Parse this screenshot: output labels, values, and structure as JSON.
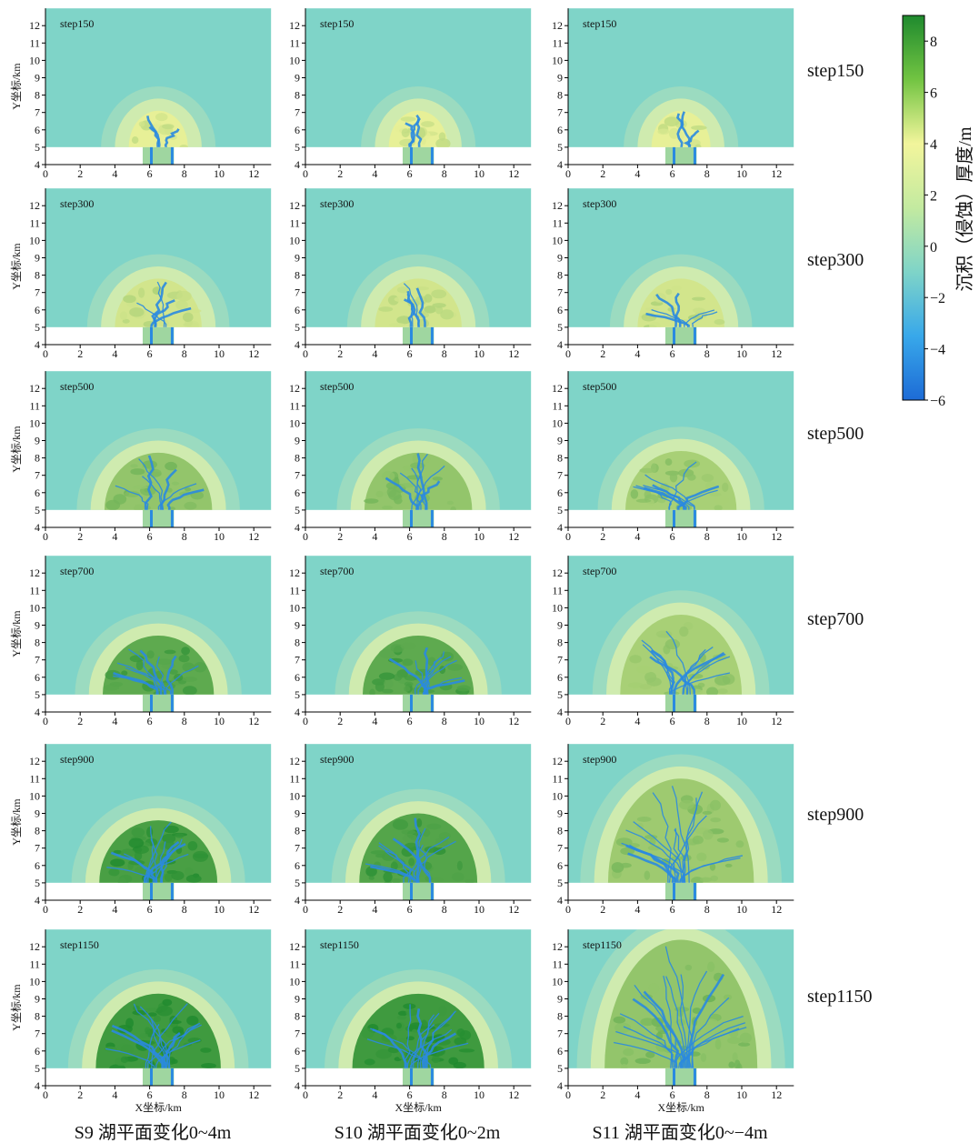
{
  "chart_data": {
    "type": "heatmap-grid",
    "columns": [
      "S9 湖平面变化0~4m",
      "S10 湖平面变化0~2m",
      "S11 湖平面变化0~−4m"
    ],
    "rows": [
      "step150",
      "step300",
      "step500",
      "step700",
      "step900",
      "step1150"
    ],
    "x_label": "X坐标/km",
    "y_label": "Y坐标/km",
    "xlim": [
      0,
      13
    ],
    "ylim": [
      4,
      13
    ],
    "xticks": [
      0,
      2,
      4,
      6,
      8,
      10,
      12
    ],
    "yticks": [
      4,
      5,
      6,
      7,
      8,
      9,
      10,
      11,
      12
    ],
    "colorbar": {
      "label": "沉积（侵蚀）厚度/m",
      "lim": [
        -6,
        9
      ],
      "ticks": [
        {
          "value": -6,
          "label": "−6"
        },
        {
          "value": -4,
          "label": "−4"
        },
        {
          "value": -2,
          "label": "−2"
        },
        0,
        2,
        4,
        6,
        8
      ],
      "colors": [
        "#1d6bd6",
        "#38a8ea",
        "#7fd4c8",
        "#c3eaa0",
        "#f2f59c",
        "#72c442",
        "#1f8a2e"
      ]
    }
  }
}
